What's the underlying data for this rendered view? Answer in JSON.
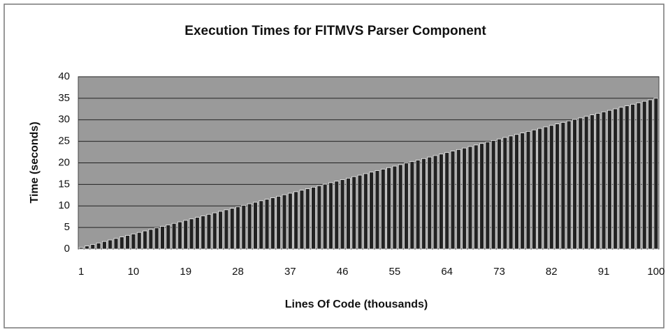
{
  "chart_data": {
    "type": "bar",
    "title": "Execution Times for FITMVS Parser Component",
    "x_label": "Lines Of Code (thousands)",
    "y_label": "Time (seconds)",
    "categories": [
      "1",
      null,
      null,
      null,
      null,
      null,
      null,
      null,
      null,
      "10",
      null,
      null,
      null,
      null,
      null,
      null,
      null,
      null,
      "19",
      null,
      null,
      null,
      null,
      null,
      null,
      null,
      null,
      "28",
      null,
      null,
      null,
      null,
      null,
      null,
      null,
      null,
      "37",
      null,
      null,
      null,
      null,
      null,
      null,
      null,
      null,
      "46",
      null,
      null,
      null,
      null,
      null,
      null,
      null,
      null,
      "55",
      null,
      null,
      null,
      null,
      null,
      null,
      null,
      null,
      "64",
      null,
      null,
      null,
      null,
      null,
      null,
      null,
      null,
      "73",
      null,
      null,
      null,
      null,
      null,
      null,
      null,
      null,
      "82",
      null,
      null,
      null,
      null,
      null,
      null,
      null,
      null,
      "91",
      null,
      null,
      null,
      null,
      null,
      null,
      null,
      null,
      "100"
    ],
    "values": [
      0.35,
      0.7,
      1.05,
      1.4,
      1.75,
      2.1,
      2.45,
      2.8,
      3.15,
      3.5,
      3.85,
      4.2,
      4.55,
      4.9,
      5.25,
      5.6,
      5.95,
      6.3,
      6.65,
      7,
      7.35,
      7.7,
      8.05,
      8.4,
      8.75,
      9.1,
      9.45,
      9.8,
      10.15,
      10.5,
      10.85,
      11.2,
      11.55,
      11.9,
      12.25,
      12.6,
      12.95,
      13.3,
      13.65,
      14,
      14.35,
      14.7,
      15.05,
      15.4,
      15.75,
      16.1,
      16.45,
      16.8,
      17.15,
      17.5,
      17.85,
      18.2,
      18.55,
      18.9,
      19.25,
      19.6,
      19.95,
      20.3,
      20.65,
      21,
      21.35,
      21.7,
      22.05,
      22.4,
      22.75,
      23.1,
      23.45,
      23.8,
      24.15,
      24.5,
      24.85,
      25.2,
      25.55,
      25.9,
      26.25,
      26.6,
      26.95,
      27.3,
      27.65,
      28,
      28.35,
      28.7,
      29.05,
      29.4,
      29.75,
      30.1,
      30.45,
      30.8,
      31.15,
      31.5,
      31.85,
      32.2,
      32.55,
      32.9,
      33.25,
      33.6,
      33.95,
      34.3,
      34.65,
      35
    ],
    "color": "#222222",
    "ylim": [
      0,
      40
    ],
    "yticks": [
      0,
      5,
      10,
      15,
      20,
      25,
      30,
      35,
      40
    ],
    "grid": true
  }
}
